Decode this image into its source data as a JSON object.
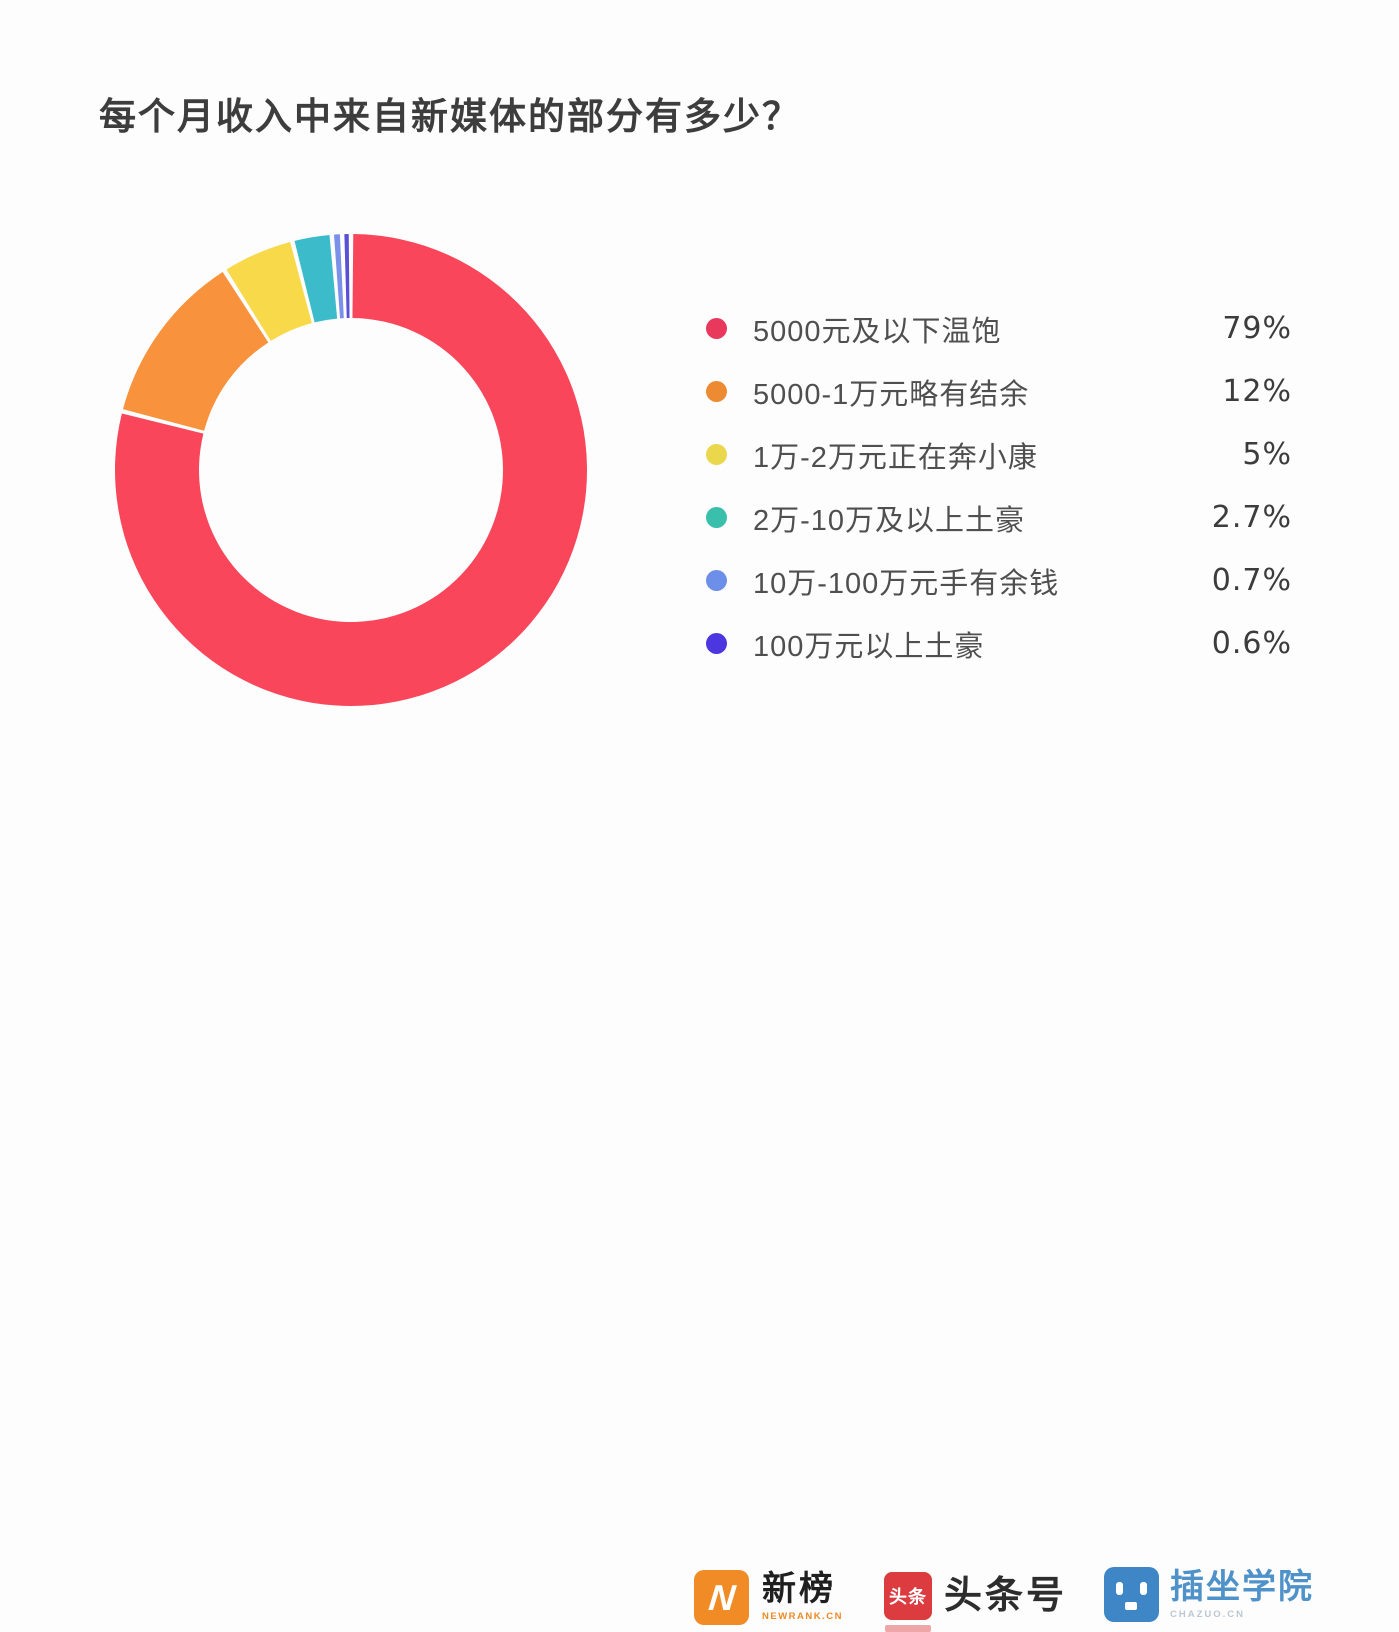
{
  "chart_data": {
    "type": "pie",
    "subtype": "donut",
    "title": "每个月收入中来自新媒体的部分有多少？",
    "categories": [
      "5000元及以下温饱",
      "5000-1万元略有结余",
      "1万-2万元正在奔小康",
      "2万-10万及以上土豪",
      "10万-100万元手有余钱",
      "100万元以上土豪"
    ],
    "values": [
      79,
      12,
      5,
      2.7,
      0.7,
      0.6
    ],
    "percent_labels": [
      "79%",
      "12%",
      "5%",
      "2.7%",
      "0.7%",
      "0.6%"
    ],
    "colors": [
      "#F9465A",
      "#F8923D",
      "#F8D94A",
      "#3CBCCB",
      "#7B90E9",
      "#5A50D5"
    ],
    "dot_colors": [
      "#E8395C",
      "#ED8B33",
      "#EBD74B",
      "#3ABFAD",
      "#6D8EE9",
      "#4B36DF"
    ],
    "legend_position": "right",
    "start_angle_deg": 0,
    "direction": "clockwise",
    "inner_radius_ratio": 0.645,
    "slice_gap_deg": 1.1
  },
  "footer": {
    "brands": [
      {
        "name": "新榜",
        "tagline": "NEWRANK.CN",
        "icon": "newrank-logo-icon",
        "icon_glyph": "N",
        "icon_color": "#F08B25",
        "tagline_color": "#ED8A25"
      },
      {
        "name": "头条号",
        "badge": "头条",
        "icon": "toutiao-logo-icon",
        "icon_color": "#DC3B40"
      },
      {
        "name": "插坐学院",
        "tagline": "CHAZUO.CN",
        "icon": "chazuo-logo-icon",
        "icon_color": "#3E86C6",
        "name_color": "#4E92C9"
      }
    ]
  }
}
